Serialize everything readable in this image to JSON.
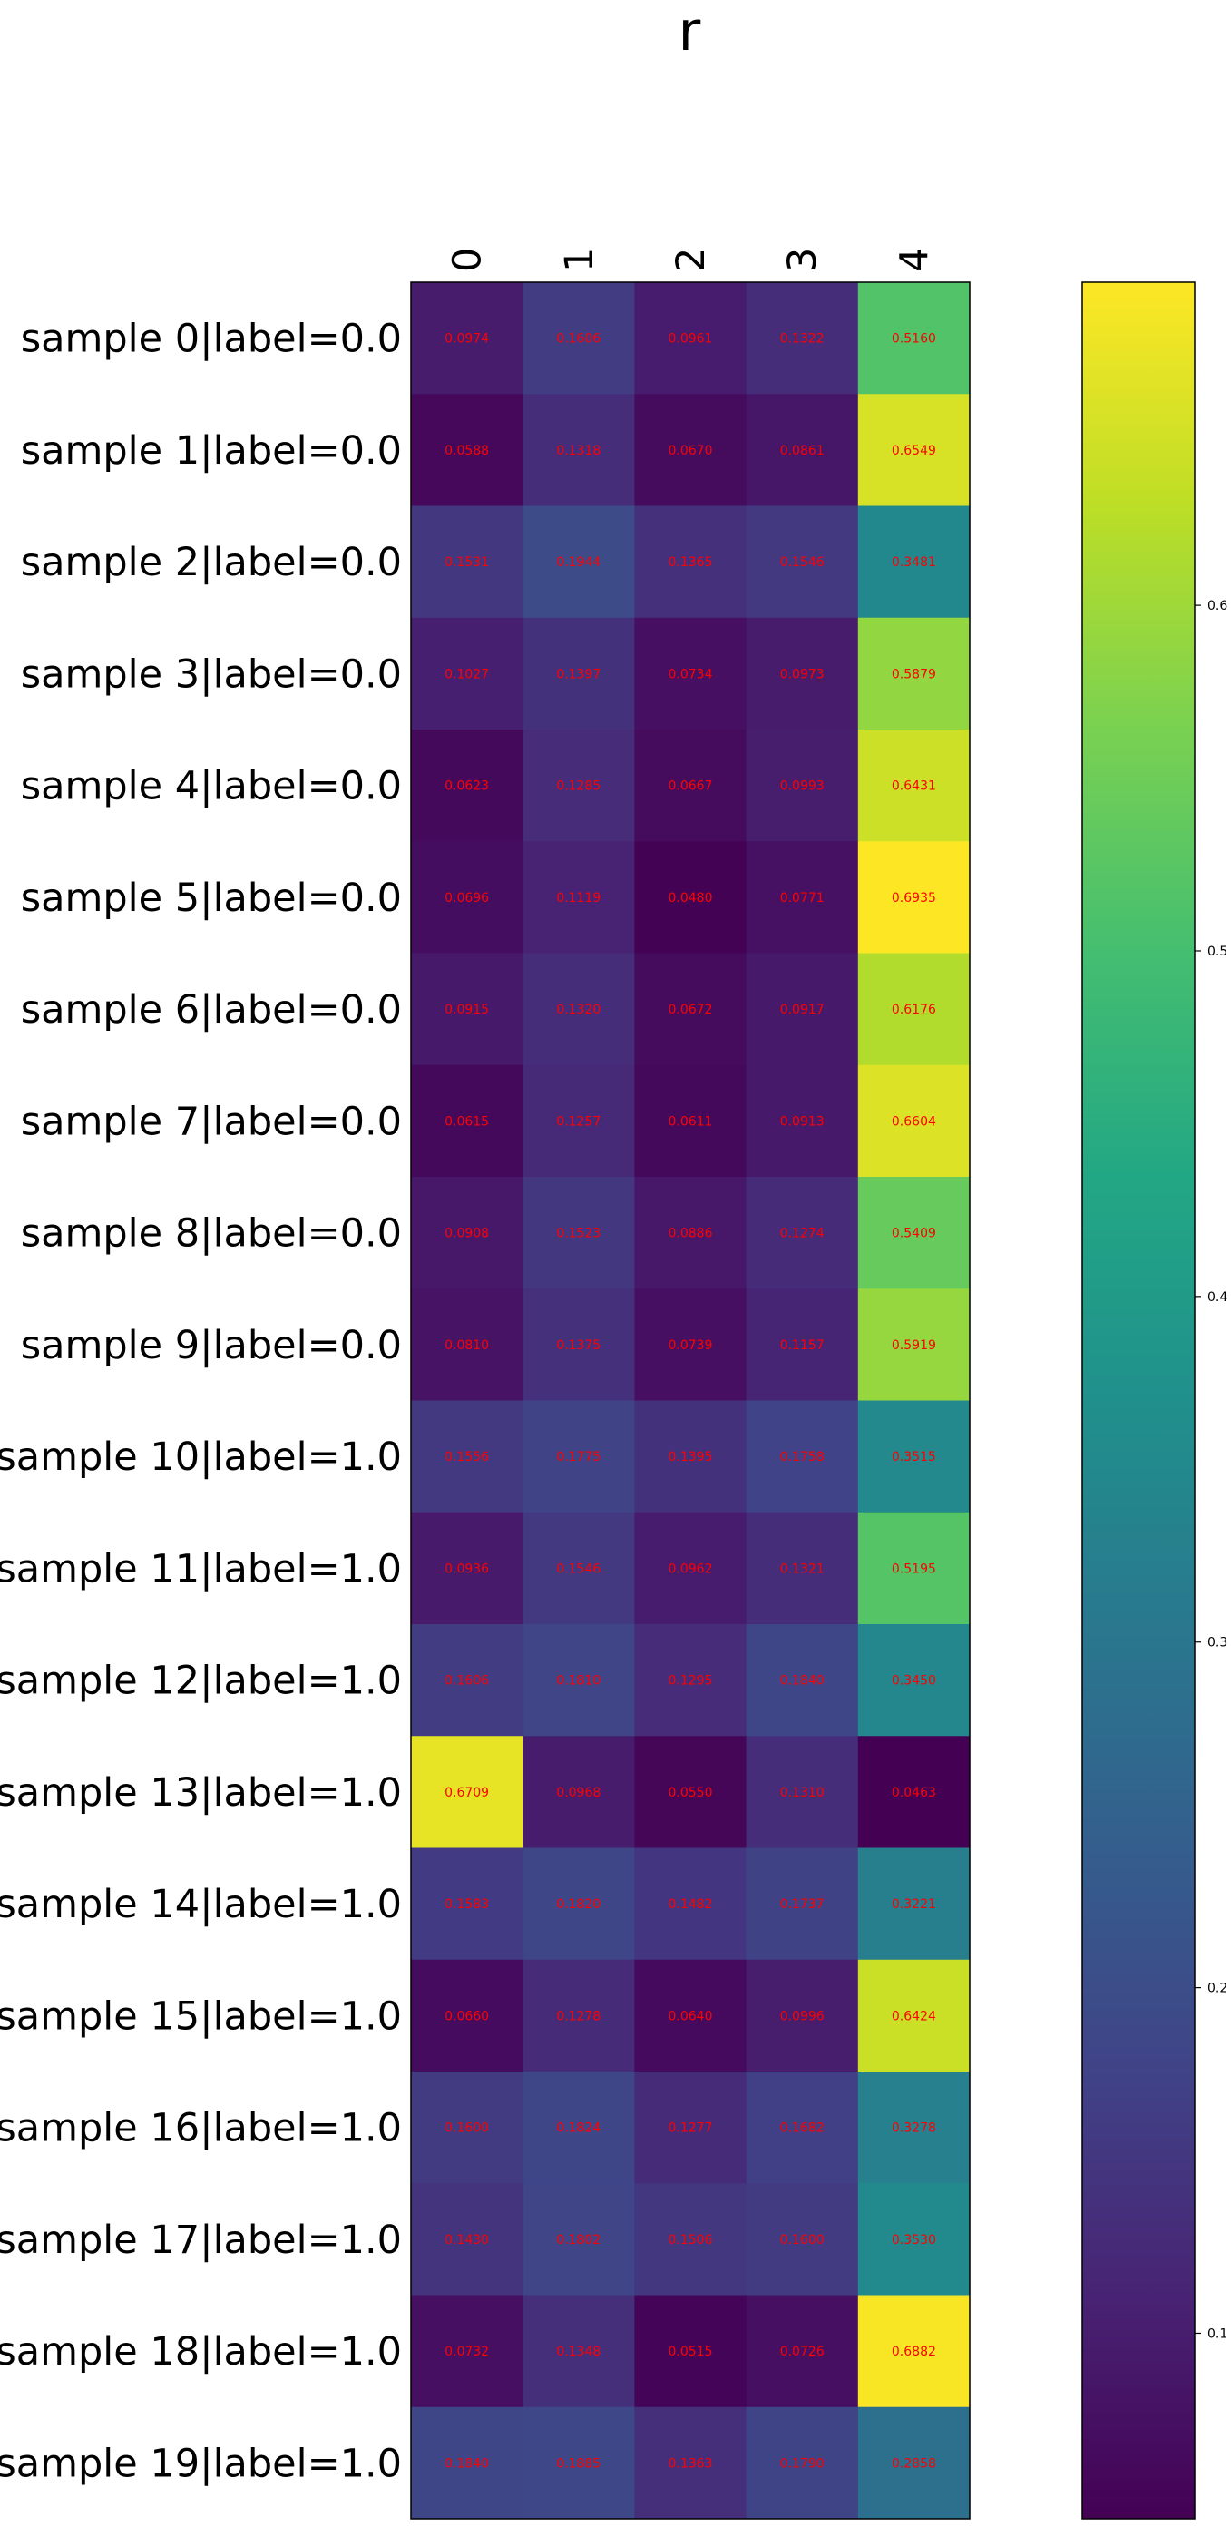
{
  "chart_data": {
    "type": "heatmap",
    "title": "r",
    "columns": [
      "0",
      "1",
      "2",
      "3",
      "4"
    ],
    "rows": [
      "sample 0|label=0.0",
      "sample 1|label=0.0",
      "sample 2|label=0.0",
      "sample 3|label=0.0",
      "sample 4|label=0.0",
      "sample 5|label=0.0",
      "sample 6|label=0.0",
      "sample 7|label=0.0",
      "sample 8|label=0.0",
      "sample 9|label=0.0",
      "sample 10|label=1.0",
      "sample 11|label=1.0",
      "sample 12|label=1.0",
      "sample 13|label=1.0",
      "sample 14|label=1.0",
      "sample 15|label=1.0",
      "sample 16|label=1.0",
      "sample 17|label=1.0",
      "sample 18|label=1.0",
      "sample 19|label=1.0"
    ],
    "values": [
      [
        0.0974,
        0.1606,
        0.0961,
        0.1322,
        0.516
      ],
      [
        0.0588,
        0.1318,
        0.067,
        0.0861,
        0.6549
      ],
      [
        0.1531,
        0.1944,
        0.1365,
        0.1546,
        0.3481
      ],
      [
        0.1027,
        0.1397,
        0.0734,
        0.0973,
        0.5879
      ],
      [
        0.0623,
        0.1285,
        0.0667,
        0.0993,
        0.6431
      ],
      [
        0.0696,
        0.1119,
        0.048,
        0.0771,
        0.6935
      ],
      [
        0.0915,
        0.132,
        0.0672,
        0.0917,
        0.6176
      ],
      [
        0.0615,
        0.1257,
        0.0611,
        0.0913,
        0.6604
      ],
      [
        0.0908,
        0.1523,
        0.0886,
        0.1274,
        0.5409
      ],
      [
        0.081,
        0.1375,
        0.0739,
        0.1157,
        0.5919
      ],
      [
        0.1556,
        0.1775,
        0.1395,
        0.1758,
        0.3515
      ],
      [
        0.0936,
        0.1546,
        0.0962,
        0.1321,
        0.5195
      ],
      [
        0.1606,
        0.181,
        0.1295,
        0.184,
        0.345
      ],
      [
        0.6709,
        0.0968,
        0.055,
        0.131,
        0.0463
      ],
      [
        0.1583,
        0.182,
        0.1482,
        0.1737,
        0.3221
      ],
      [
        0.066,
        0.1278,
        0.064,
        0.0996,
        0.6424
      ],
      [
        0.16,
        0.1824,
        0.1277,
        0.1682,
        0.3278
      ],
      [
        0.143,
        0.1802,
        0.1506,
        0.16,
        0.353
      ],
      [
        0.0732,
        0.1348,
        0.0515,
        0.0726,
        0.6882
      ],
      [
        0.184,
        0.1885,
        0.1363,
        0.179,
        0.2858
      ]
    ],
    "colormap": "viridis",
    "value_text_color": "#ff0000",
    "colorbar": {
      "range": [
        0.0463,
        0.6935
      ],
      "ticks": [
        0.1,
        0.2,
        0.3,
        0.4,
        0.5,
        0.6
      ],
      "tick_labels": [
        "0.1",
        "0.2",
        "0.3",
        "0.4",
        "0.5",
        "0.6"
      ]
    },
    "x_ticks_position": "top",
    "grid": false
  }
}
